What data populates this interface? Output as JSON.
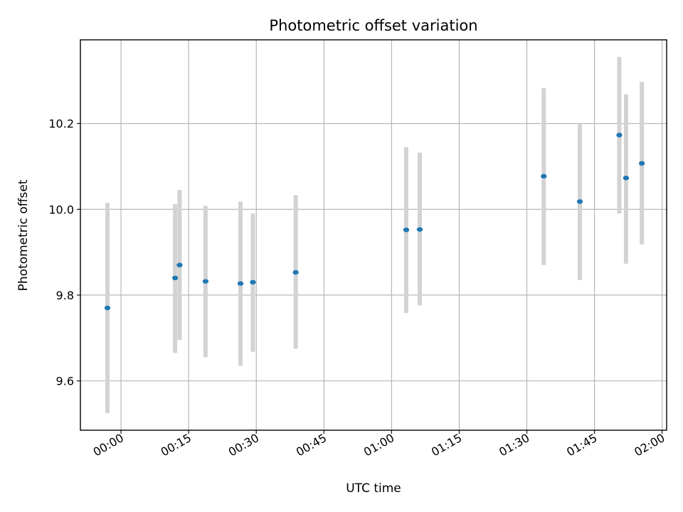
{
  "chart_data": {
    "type": "scatter",
    "title": "Photometric offset variation",
    "xlabel": "UTC time",
    "ylabel": "Photometric offset",
    "x_ticks": [
      "00:00",
      "00:15",
      "00:30",
      "00:45",
      "01:00",
      "01:15",
      "01:30",
      "01:45",
      "02:00"
    ],
    "y_ticks": [
      "9.6",
      "9.8",
      "10.0",
      "10.2"
    ],
    "xlim": [
      "23:51:00",
      "02:01:00"
    ],
    "ylim": [
      9.485,
      10.395
    ],
    "grid": true,
    "colors": {
      "point": "#1f77b4",
      "errorbar": "#d3d3d3",
      "grid": "#b0b0b0"
    },
    "points": [
      {
        "time": "23:57:00",
        "offset": 9.77,
        "lower": 9.525,
        "upper": 10.015
      },
      {
        "time": "00:12:00",
        "offset": 9.84,
        "lower": 9.665,
        "upper": 10.012
      },
      {
        "time": "00:13:00",
        "offset": 9.87,
        "lower": 9.695,
        "upper": 10.045
      },
      {
        "time": "00:18:45",
        "offset": 9.832,
        "lower": 9.655,
        "upper": 10.008
      },
      {
        "time": "00:26:30",
        "offset": 9.827,
        "lower": 9.635,
        "upper": 10.018
      },
      {
        "time": "00:29:15",
        "offset": 9.83,
        "lower": 9.668,
        "upper": 9.99
      },
      {
        "time": "00:38:45",
        "offset": 9.853,
        "lower": 9.675,
        "upper": 10.033
      },
      {
        "time": "01:03:15",
        "offset": 9.952,
        "lower": 9.758,
        "upper": 10.145
      },
      {
        "time": "01:06:15",
        "offset": 9.953,
        "lower": 9.776,
        "upper": 10.132
      },
      {
        "time": "01:33:45",
        "offset": 10.077,
        "lower": 9.87,
        "upper": 10.282
      },
      {
        "time": "01:41:45",
        "offset": 10.018,
        "lower": 9.835,
        "upper": 10.2
      },
      {
        "time": "01:50:30",
        "offset": 10.173,
        "lower": 9.99,
        "upper": 10.355
      },
      {
        "time": "01:52:00",
        "offset": 10.073,
        "lower": 9.873,
        "upper": 10.268
      },
      {
        "time": "01:55:30",
        "offset": 10.107,
        "lower": 9.918,
        "upper": 10.297
      }
    ]
  }
}
